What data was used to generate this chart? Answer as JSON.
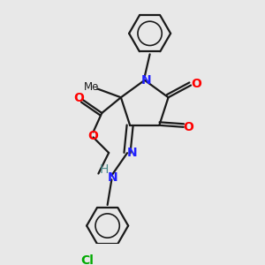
{
  "bg_color": "#e8e8e8",
  "bond_color": "#1a1a1a",
  "N_color": "#2020ff",
  "O_color": "#ff0000",
  "Cl_color": "#00aa00",
  "lw": 1.6,
  "fig_size": [
    3.0,
    3.0
  ],
  "dpi": 100,
  "xlim": [
    -2.5,
    2.8
  ],
  "ylim": [
    -3.8,
    3.2
  ]
}
